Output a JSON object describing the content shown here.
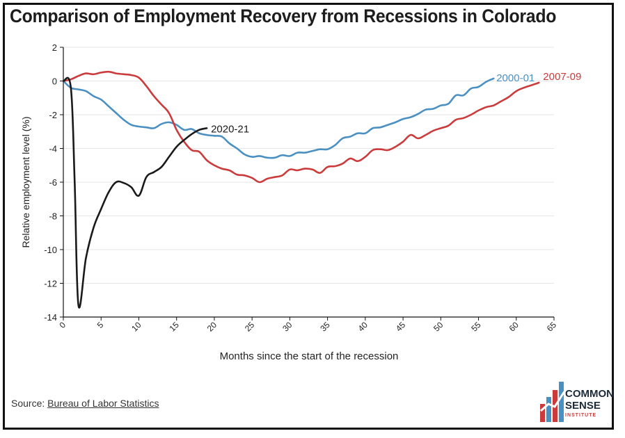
{
  "title": "Comparison of Employment Recovery from Recessions in Colorado",
  "source": {
    "prefix": "Source: ",
    "link_text": "Bureau of Labor Statistics"
  },
  "logo": {
    "line1": "COMMON",
    "line2": "SENSE",
    "line3": "INSTITUTE"
  },
  "chart_data": {
    "type": "line",
    "title": "Comparison of Employment Recovery from Recessions in Colorado",
    "xlabel": "Months since the start of the recession",
    "ylabel": "Relative employment level (%)",
    "xlim": [
      0,
      65
    ],
    "ylim": [
      -14,
      2
    ],
    "xticks": [
      0,
      5,
      10,
      15,
      20,
      25,
      30,
      35,
      40,
      45,
      50,
      55,
      60,
      65
    ],
    "yticks": [
      2,
      0,
      -2,
      -4,
      -6,
      -8,
      -10,
      -12,
      -14
    ],
    "grid": true,
    "colors": {
      "2000-01": "#4a90c2",
      "2007-09": "#cc3b3b",
      "2020-21": "#1a1a1a",
      "gridline": "#e6e6e6",
      "axis": "#111111"
    },
    "series": [
      {
        "name": "2000-01",
        "x": [
          0,
          1,
          2,
          3,
          4,
          5,
          6,
          7,
          8,
          9,
          10,
          11,
          12,
          13,
          14,
          15,
          16,
          17,
          18,
          19,
          20,
          21,
          22,
          23,
          24,
          25,
          26,
          27,
          28,
          29,
          30,
          31,
          32,
          33,
          34,
          35,
          36,
          37,
          38,
          39,
          40,
          41,
          42,
          43,
          44,
          45,
          46,
          47,
          48,
          49,
          50,
          51,
          52,
          53,
          54,
          55,
          56,
          57
        ],
        "y": [
          0,
          -0.4,
          -0.5,
          -0.6,
          -0.9,
          -1.1,
          -1.5,
          -1.9,
          -2.3,
          -2.6,
          -2.7,
          -2.75,
          -2.8,
          -2.55,
          -2.45,
          -2.6,
          -2.9,
          -2.85,
          -3.1,
          -3.2,
          -3.25,
          -3.3,
          -3.7,
          -4.0,
          -4.35,
          -4.5,
          -4.45,
          -4.55,
          -4.55,
          -4.4,
          -4.45,
          -4.25,
          -4.25,
          -4.15,
          -4.05,
          -4.05,
          -3.8,
          -3.4,
          -3.3,
          -3.1,
          -3.1,
          -2.8,
          -2.75,
          -2.6,
          -2.45,
          -2.25,
          -2.15,
          -1.95,
          -1.7,
          -1.65,
          -1.45,
          -1.35,
          -0.85,
          -0.85,
          -0.45,
          -0.35,
          -0.05,
          0.15
        ]
      },
      {
        "name": "2007-09",
        "x": [
          0,
          1,
          2,
          3,
          4,
          5,
          6,
          7,
          8,
          9,
          10,
          11,
          12,
          13,
          14,
          15,
          16,
          17,
          18,
          19,
          20,
          21,
          22,
          23,
          24,
          25,
          26,
          27,
          28,
          29,
          30,
          31,
          32,
          33,
          34,
          35,
          36,
          37,
          38,
          39,
          40,
          41,
          42,
          43,
          44,
          45,
          46,
          47,
          48,
          49,
          50,
          51,
          52,
          53,
          54,
          55,
          56,
          57,
          58,
          59,
          60,
          61,
          62,
          63
        ],
        "y": [
          0,
          0.1,
          0.3,
          0.45,
          0.4,
          0.5,
          0.55,
          0.45,
          0.4,
          0.35,
          0.2,
          -0.3,
          -0.9,
          -1.4,
          -1.9,
          -2.9,
          -3.6,
          -4.1,
          -4.2,
          -4.7,
          -5.0,
          -5.2,
          -5.3,
          -5.55,
          -5.6,
          -5.75,
          -6.0,
          -5.8,
          -5.7,
          -5.6,
          -5.25,
          -5.3,
          -5.2,
          -5.25,
          -5.45,
          -5.1,
          -5.05,
          -4.9,
          -4.6,
          -4.75,
          -4.5,
          -4.1,
          -4.05,
          -4.1,
          -3.9,
          -3.6,
          -3.2,
          -3.4,
          -3.2,
          -2.95,
          -2.8,
          -2.65,
          -2.3,
          -2.2,
          -2.0,
          -1.75,
          -1.55,
          -1.45,
          -1.2,
          -0.95,
          -0.6,
          -0.4,
          -0.25,
          -0.1
        ]
      },
      {
        "name": "2020-21",
        "x": [
          0,
          1,
          1.5,
          2,
          3,
          4,
          5,
          6,
          7,
          8,
          9,
          10,
          11,
          12,
          13,
          14,
          15,
          16,
          17,
          18,
          19
        ],
        "y": [
          0,
          -0.4,
          -6.0,
          -13.3,
          -10.5,
          -8.7,
          -7.6,
          -6.6,
          -6.0,
          -6.05,
          -6.3,
          -6.8,
          -5.7,
          -5.4,
          -5.1,
          -4.5,
          -3.9,
          -3.5,
          -3.15,
          -2.9,
          -2.8
        ]
      }
    ],
    "series_labels": [
      "2000-01",
      "2007-09",
      "2020-21"
    ]
  }
}
